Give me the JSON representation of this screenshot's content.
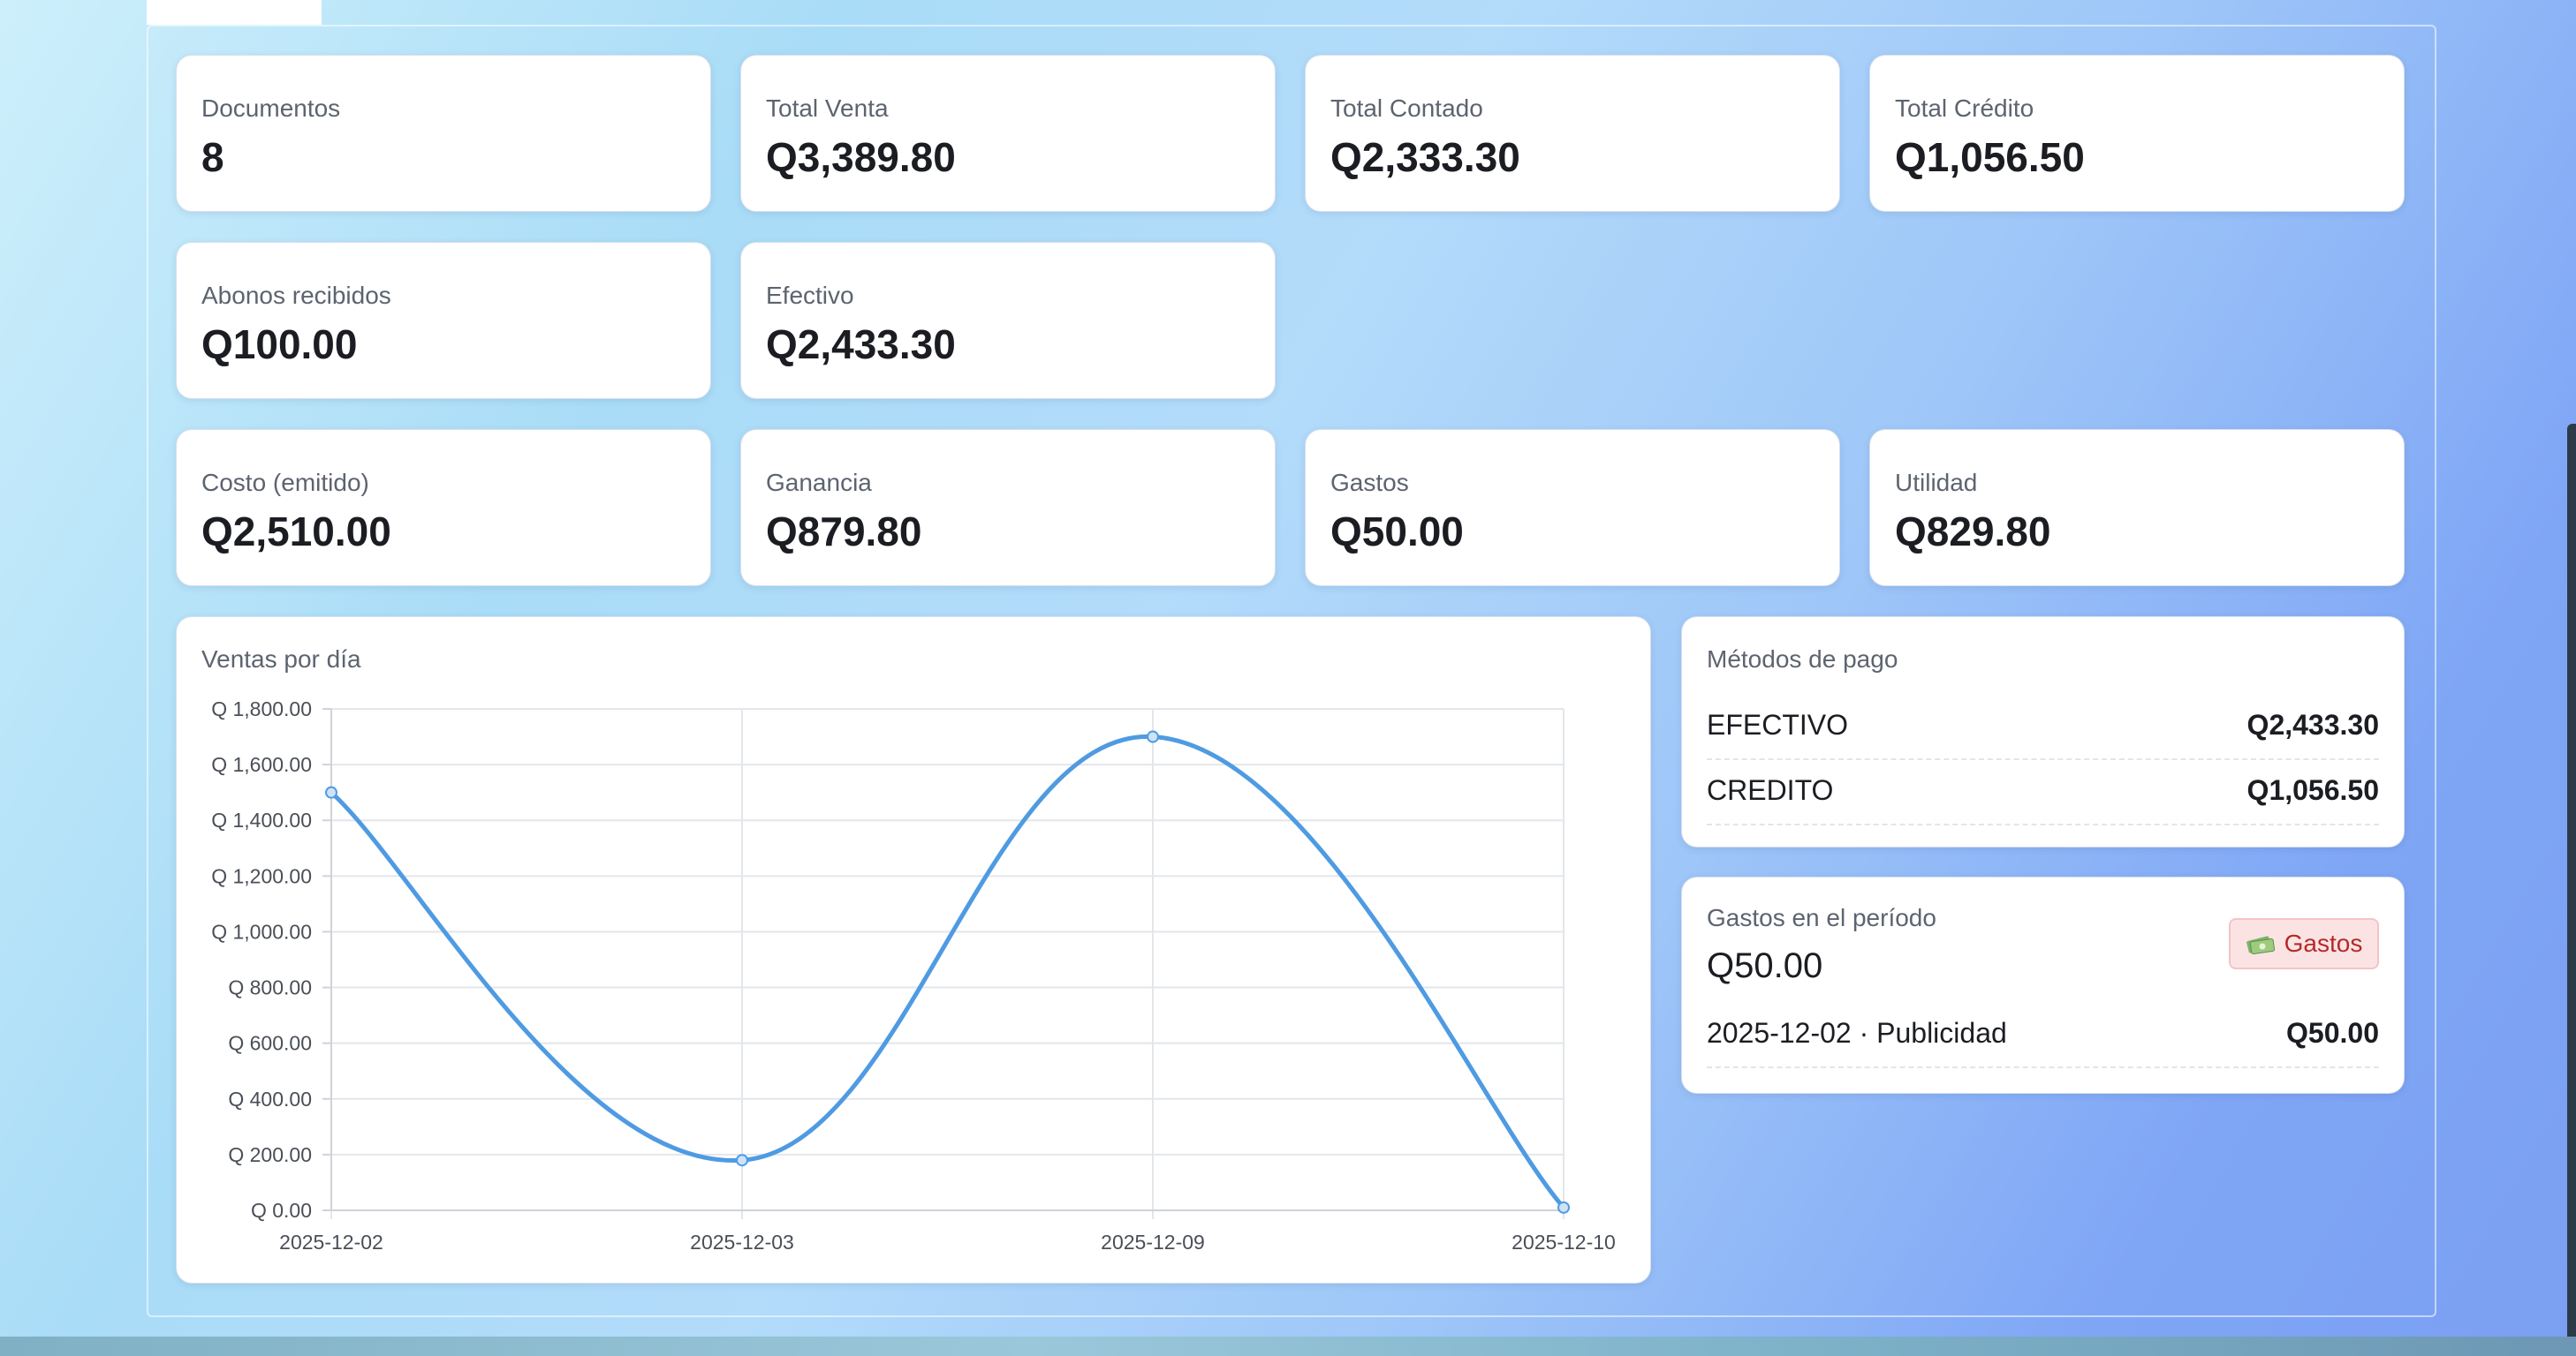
{
  "stats_row1": [
    {
      "label": "Documentos",
      "value": "8"
    },
    {
      "label": "Total Venta",
      "value": "Q3,389.80"
    },
    {
      "label": "Total Contado",
      "value": "Q2,333.30"
    },
    {
      "label": "Total Crédito",
      "value": "Q1,056.50"
    }
  ],
  "stats_row2": [
    {
      "label": "Abonos recibidos",
      "value": "Q100.00"
    },
    {
      "label": "Efectivo",
      "value": "Q2,433.30"
    }
  ],
  "stats_row3": [
    {
      "label": "Costo (emitido)",
      "value": "Q2,510.00"
    },
    {
      "label": "Ganancia",
      "value": "Q879.80"
    },
    {
      "label": "Gastos",
      "value": "Q50.00"
    },
    {
      "label": "Utilidad",
      "value": "Q829.80"
    }
  ],
  "sales_chart": {
    "title": "Ventas por día"
  },
  "chart_data": {
    "type": "line",
    "title": "Ventas por día",
    "categories": [
      "2025-12-02",
      "2025-12-03",
      "2025-12-09",
      "2025-12-10"
    ],
    "series": [
      {
        "values": [
          1500,
          180,
          1700,
          10
        ]
      }
    ],
    "ylim": [
      0,
      1800
    ],
    "yticks": [
      "Q 0.00",
      "Q 200.00",
      "Q 400.00",
      "Q 600.00",
      "Q 800.00",
      "Q 1,000.00",
      "Q 1,200.00",
      "Q 1,400.00",
      "Q 1,600.00",
      "Q 1,800.00"
    ],
    "grid": true,
    "line_color": "#4f9be2"
  },
  "payment_methods": {
    "title": "Métodos de pago",
    "items": [
      {
        "name": "EFECTIVO",
        "amount": "Q2,433.30"
      },
      {
        "name": "CREDITO",
        "amount": "Q1,056.50"
      }
    ]
  },
  "expenses": {
    "title": "Gastos en el período",
    "total": "Q50.00",
    "badge_label": "Gastos",
    "badge_icon": "money-icon",
    "items": [
      {
        "desc": "2025-12-02 · Publicidad",
        "amount": "Q50.00"
      }
    ]
  },
  "colors": {
    "accent": "#4f9be2",
    "badge_bg": "#fbe3e3",
    "badge_text": "#b42a2a"
  }
}
